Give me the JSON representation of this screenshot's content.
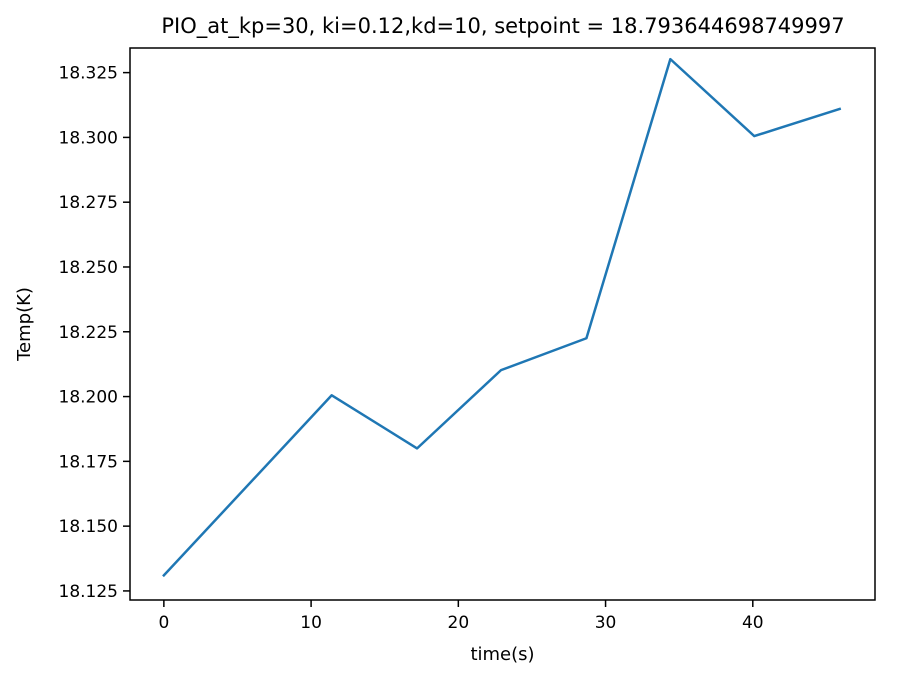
{
  "chart_data": {
    "type": "line",
    "title": "PIO_at_kp=30, ki=0.12,kd=10, setpoint = 18.793644698749997",
    "xlabel": "time(s)",
    "ylabel": "Temp(K)",
    "xlim": [
      -2.3,
      48.3
    ],
    "ylim": [
      18.1215,
      18.3345
    ],
    "xticks": [
      0,
      10,
      20,
      30,
      40
    ],
    "xtick_labels": [
      "0",
      "10",
      "20",
      "30",
      "40"
    ],
    "yticks": [
      18.125,
      18.15,
      18.175,
      18.2,
      18.225,
      18.25,
      18.275,
      18.3,
      18.325
    ],
    "ytick_labels": [
      "18.125",
      "18.150",
      "18.175",
      "18.200",
      "18.225",
      "18.250",
      "18.275",
      "18.300",
      "18.325"
    ],
    "grid": false,
    "legend": "none",
    "series": [
      {
        "color": "#1f77b4",
        "x": [
          0,
          11.4,
          17.2,
          22.9,
          28.7,
          34.4,
          40.1,
          45.9
        ],
        "y": [
          18.131,
          18.2005,
          18.18,
          18.2102,
          18.2225,
          18.3302,
          18.3005,
          18.311
        ]
      }
    ]
  }
}
